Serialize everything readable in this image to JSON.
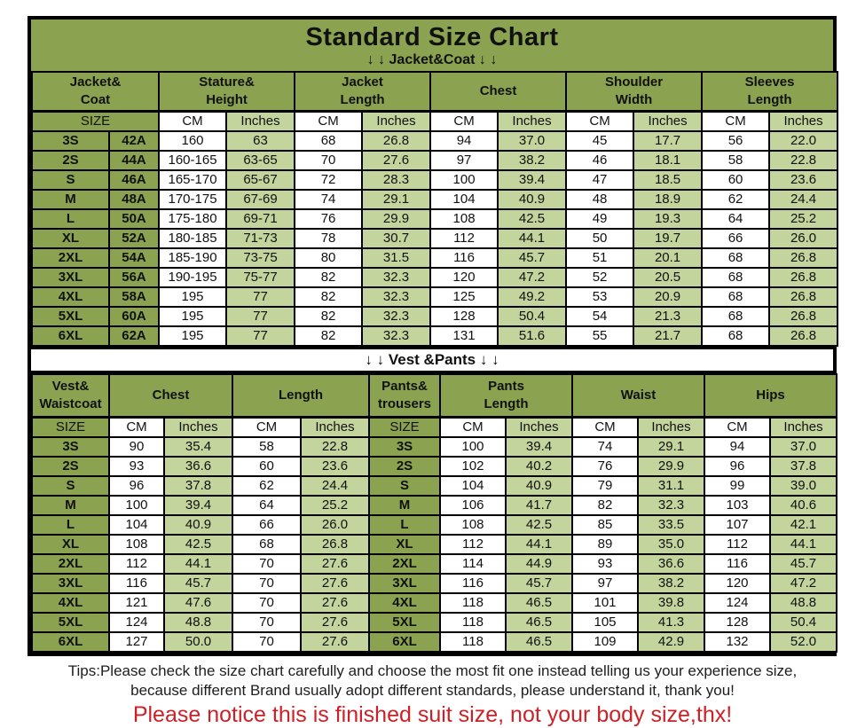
{
  "header": {
    "title": "Standard Size Chart",
    "jacket_banner": "↓ ↓  Jacket&Coat ↓ ↓",
    "vest_banner": "↓ ↓  Vest &Pants ↓ ↓"
  },
  "colors": {
    "olive": "#8ba351",
    "light_green": "#c3d49c",
    "notice_red": "#cc2127",
    "border": "#000000"
  },
  "jacket_table": {
    "column_groups": [
      "Jacket&\nCoat",
      "Stature&\nHeight",
      "Jacket\nLength",
      "Chest",
      "Shoulder\nWidth",
      "Sleeves\nLength"
    ],
    "subheader": [
      "SIZE",
      "CM",
      "Inches",
      "CM",
      "Inches",
      "CM",
      "Inches",
      "CM",
      "Inches",
      "CM",
      "Inches"
    ],
    "rows": [
      [
        "3S",
        "42A",
        "160",
        "63",
        "68",
        "26.8",
        "94",
        "37.0",
        "45",
        "17.7",
        "56",
        "22.0"
      ],
      [
        "2S",
        "44A",
        "160-165",
        "63-65",
        "70",
        "27.6",
        "97",
        "38.2",
        "46",
        "18.1",
        "58",
        "22.8"
      ],
      [
        "S",
        "46A",
        "165-170",
        "65-67",
        "72",
        "28.3",
        "100",
        "39.4",
        "47",
        "18.5",
        "60",
        "23.6"
      ],
      [
        "M",
        "48A",
        "170-175",
        "67-69",
        "74",
        "29.1",
        "104",
        "40.9",
        "48",
        "18.9",
        "62",
        "24.4"
      ],
      [
        "L",
        "50A",
        "175-180",
        "69-71",
        "76",
        "29.9",
        "108",
        "42.5",
        "49",
        "19.3",
        "64",
        "25.2"
      ],
      [
        "XL",
        "52A",
        "180-185",
        "71-73",
        "78",
        "30.7",
        "112",
        "44.1",
        "50",
        "19.7",
        "66",
        "26.0"
      ],
      [
        "2XL",
        "54A",
        "185-190",
        "73-75",
        "80",
        "31.5",
        "116",
        "45.7",
        "51",
        "20.1",
        "68",
        "26.8"
      ],
      [
        "3XL",
        "56A",
        "190-195",
        "75-77",
        "82",
        "32.3",
        "120",
        "47.2",
        "52",
        "20.5",
        "68",
        "26.8"
      ],
      [
        "4XL",
        "58A",
        "195",
        "77",
        "82",
        "32.3",
        "125",
        "49.2",
        "53",
        "20.9",
        "68",
        "26.8"
      ],
      [
        "5XL",
        "60A",
        "195",
        "77",
        "82",
        "32.3",
        "128",
        "50.4",
        "54",
        "21.3",
        "68",
        "26.8"
      ],
      [
        "6XL",
        "62A",
        "195",
        "77",
        "82",
        "32.3",
        "131",
        "51.6",
        "55",
        "21.7",
        "68",
        "26.8"
      ]
    ]
  },
  "vest_pants_table": {
    "column_groups": [
      "Vest&\nWaistcoat",
      "Chest",
      "Length",
      "Pants&\ntrousers",
      "Pants\nLength",
      "Waist",
      "Hips"
    ],
    "subheader": [
      "SIZE",
      "CM",
      "Inches",
      "CM",
      "Inches",
      "SIZE",
      "CM",
      "Inches",
      "CM",
      "Inches",
      "CM",
      "Inches"
    ],
    "rows": [
      [
        "3S",
        "90",
        "35.4",
        "58",
        "22.8",
        "3S",
        "100",
        "39.4",
        "74",
        "29.1",
        "94",
        "37.0"
      ],
      [
        "2S",
        "93",
        "36.6",
        "60",
        "23.6",
        "2S",
        "102",
        "40.2",
        "76",
        "29.9",
        "96",
        "37.8"
      ],
      [
        "S",
        "96",
        "37.8",
        "62",
        "24.4",
        "S",
        "104",
        "40.9",
        "79",
        "31.1",
        "99",
        "39.0"
      ],
      [
        "M",
        "100",
        "39.4",
        "64",
        "25.2",
        "M",
        "106",
        "41.7",
        "82",
        "32.3",
        "103",
        "40.6"
      ],
      [
        "L",
        "104",
        "40.9",
        "66",
        "26.0",
        "L",
        "108",
        "42.5",
        "85",
        "33.5",
        "107",
        "42.1"
      ],
      [
        "XL",
        "108",
        "42.5",
        "68",
        "26.8",
        "XL",
        "112",
        "44.1",
        "89",
        "35.0",
        "112",
        "44.1"
      ],
      [
        "2XL",
        "112",
        "44.1",
        "70",
        "27.6",
        "2XL",
        "114",
        "44.9",
        "93",
        "36.6",
        "116",
        "45.7"
      ],
      [
        "3XL",
        "116",
        "45.7",
        "70",
        "27.6",
        "3XL",
        "116",
        "45.7",
        "97",
        "38.2",
        "120",
        "47.2"
      ],
      [
        "4XL",
        "121",
        "47.6",
        "70",
        "27.6",
        "4XL",
        "118",
        "46.5",
        "101",
        "39.8",
        "124",
        "48.8"
      ],
      [
        "5XL",
        "124",
        "48.8",
        "70",
        "27.6",
        "5XL",
        "118",
        "46.5",
        "105",
        "41.3",
        "128",
        "50.4"
      ],
      [
        "6XL",
        "127",
        "50.0",
        "70",
        "27.6",
        "6XL",
        "118",
        "46.5",
        "109",
        "42.9",
        "132",
        "52.0"
      ]
    ]
  },
  "footer": {
    "tips_line1": "Tips:Please check the size chart carefully and choose the most fit one instead telling us your experience size,",
    "tips_line2": "because different Brand usually adopt different standards, please understand it, thank you!",
    "notice": "Please notice this is finished suit size, not your body size,thx!"
  }
}
